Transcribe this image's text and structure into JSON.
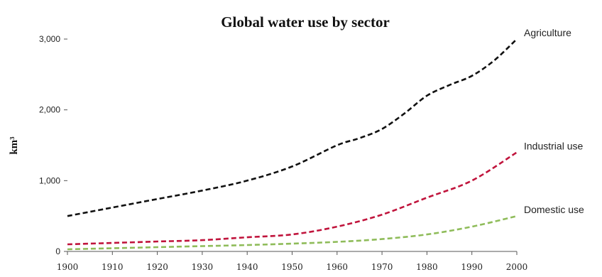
{
  "chart_data": {
    "type": "line",
    "title": "Global water use by sector",
    "xlabel": "",
    "ylabel": "km³",
    "x": [
      1900,
      1910,
      1920,
      1930,
      1940,
      1950,
      1960,
      1970,
      1980,
      1990,
      2000
    ],
    "x_tick_labels": [
      "1900",
      "1910",
      "1920",
      "1930",
      "1940",
      "1950",
      "1960",
      "1970",
      "1980",
      "1990",
      "2000"
    ],
    "y_ticks": [
      0,
      1000,
      2000,
      3000
    ],
    "y_tick_labels": [
      "0",
      "1,000",
      "2,000",
      "3,000"
    ],
    "xlim": [
      1900,
      2000
    ],
    "ylim": [
      0,
      3000
    ],
    "grid": false,
    "legend": "none; series labelled at line ends",
    "series": [
      {
        "name": "Agriculture",
        "color": "#111111",
        "style": "dashed",
        "x": [
          1900,
          1910,
          1920,
          1930,
          1940,
          1950,
          1960,
          1965,
          1970,
          1975,
          1980,
          1985,
          1990,
          1995,
          2000
        ],
        "values": [
          500,
          620,
          740,
          860,
          1000,
          1200,
          1500,
          1600,
          1730,
          1950,
          2200,
          2350,
          2480,
          2700,
          3000
        ]
      },
      {
        "name": "Industrial use",
        "color": "#c0143c",
        "style": "dashed",
        "x": [
          1900,
          1910,
          1920,
          1930,
          1940,
          1950,
          1960,
          1970,
          1980,
          1990,
          2000
        ],
        "values": [
          100,
          120,
          140,
          160,
          200,
          240,
          350,
          520,
          760,
          1000,
          1400
        ]
      },
      {
        "name": "Domestic use",
        "color": "#8fbc5a",
        "style": "dashed",
        "x": [
          1900,
          1910,
          1920,
          1930,
          1940,
          1950,
          1960,
          1970,
          1980,
          1990,
          2000
        ],
        "values": [
          30,
          45,
          60,
          75,
          90,
          110,
          135,
          175,
          240,
          350,
          500
        ]
      }
    ]
  }
}
